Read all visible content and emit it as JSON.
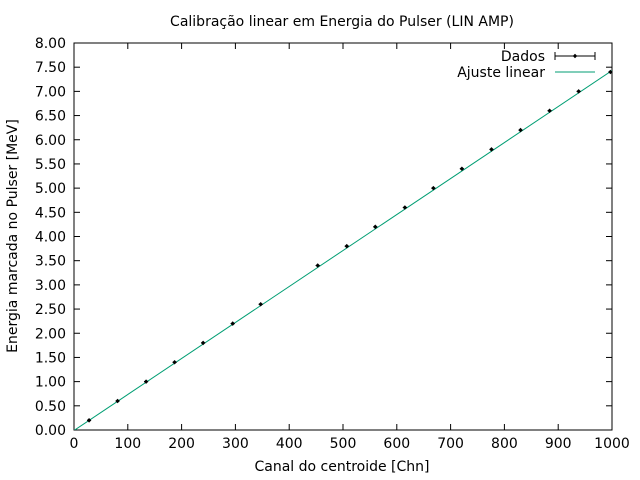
{
  "chart_data": {
    "type": "scatter",
    "title": "Calibração linear em Energia do Pulser (LIN AMP)",
    "xlabel": "Canal do centroide [Chn]",
    "ylabel": "Energia marcada no Pulser [MeV]",
    "xlim": [
      0,
      1000
    ],
    "ylim": [
      0,
      8
    ],
    "x_ticks": [
      "0",
      "100",
      "200",
      "300",
      "400",
      "500",
      "600",
      "700",
      "800",
      "900",
      "1000"
    ],
    "y_ticks": [
      "0.00",
      "0.50",
      "1.00",
      "1.50",
      "2.00",
      "2.50",
      "3.00",
      "3.50",
      "4.00",
      "4.50",
      "5.00",
      "5.50",
      "6.00",
      "6.50",
      "7.00",
      "7.50",
      "8.00"
    ],
    "grid": false,
    "legend_position": "top-right",
    "series": [
      {
        "name": "Dados",
        "kind": "points-with-errorbars",
        "color": "#000000",
        "x": [
          28,
          81,
          134,
          187,
          240,
          295,
          347,
          453,
          507,
          560,
          615,
          668,
          721,
          776,
          830,
          884,
          938,
          997
        ],
        "y": [
          0.2,
          0.6,
          1.0,
          1.4,
          1.8,
          2.2,
          2.6,
          3.4,
          3.8,
          4.2,
          4.6,
          5.0,
          5.4,
          5.8,
          6.2,
          6.6,
          7.0,
          7.4
        ]
      },
      {
        "name": "Ajuste linear",
        "kind": "line",
        "color": "#009e73",
        "x": [
          0,
          1000
        ],
        "y": [
          -0.01,
          7.43
        ]
      }
    ]
  }
}
